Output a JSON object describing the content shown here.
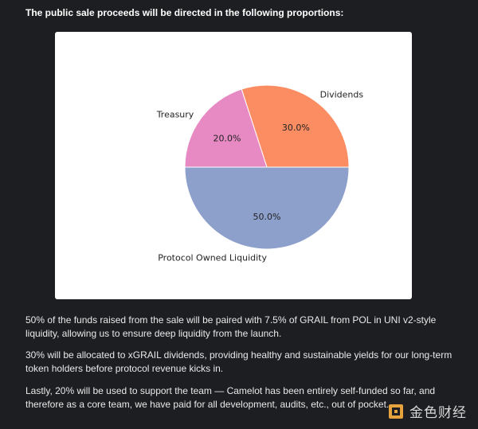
{
  "heading": "The public sale proceeds will be directed in the following proportions:",
  "chart_data": {
    "type": "pie",
    "slices": [
      {
        "label": "Dividends",
        "value": 30,
        "pct_label": "30.0%",
        "color": "#fc8d62"
      },
      {
        "label": "Treasury",
        "value": 20,
        "pct_label": "20.0%",
        "color": "#e78ac3"
      },
      {
        "label": "Protocol Owned Liquidity",
        "value": 50,
        "pct_label": "50.0%",
        "color": "#8da0cb"
      }
    ],
    "title": "",
    "legend": "none",
    "start_angle_deg": 0,
    "direction": "counterclockwise"
  },
  "paragraphs": [
    "50% of the funds raised from the sale will be paired with 7.5% of GRAIL from POL in UNI v2-style liquidity, allowing us to ensure deep liquidity from the launch.",
    "30% will be allocated to xGRAIL dividends, providing healthy and sustainable yields for our long-term token holders before protocol revenue kicks in.",
    "Lastly, 20% will be used to support the team — Camelot has been entirely self-funded so far, and therefore as a core team, we have paid for all development, audits, etc., out of pocket."
  ],
  "watermark": {
    "text": "金色财经",
    "icon": "jinse-logo-icon",
    "color": "#e6a23c"
  }
}
